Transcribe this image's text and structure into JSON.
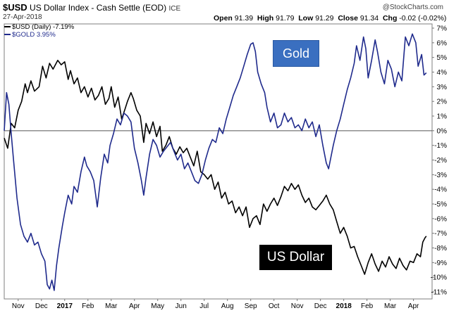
{
  "header": {
    "symbol": "$USD",
    "name": "US Dollar Index - Cash Settle (EOD)",
    "exchange": "ICE",
    "date": "27-Apr-2018",
    "watermark": "@StockCharts.com",
    "open_label": "Open",
    "open": "91.39",
    "high_label": "High",
    "high": "91.79",
    "low_label": "Low",
    "low": "91.29",
    "close_label": "Close",
    "close": "91.34",
    "chg_label": "Chg",
    "chg": "-0.02 (-0.02%)"
  },
  "legend": [
    {
      "label": "$USD (Daily) -7.19%",
      "color": "#000000"
    },
    {
      "label": "$GOLD 3.95%",
      "color": "#1f2a8c"
    }
  ],
  "annotations": {
    "gold": "Gold",
    "usd": "US Dollar",
    "gold_bg": "#3a6fc0",
    "usd_bg": "#000000"
  },
  "chart_data": {
    "type": "line",
    "ylim": [
      -11.5,
      7.5
    ],
    "y_ticks": [
      "7%",
      "6%",
      "5%",
      "4%",
      "3%",
      "2%",
      "1%",
      "0%",
      "-1%",
      "-2%",
      "-3%",
      "-4%",
      "-5%",
      "-6%",
      "-7%",
      "-8%",
      "-9%",
      "-10%",
      "-11%"
    ],
    "y_tick_values": [
      7,
      6,
      5,
      4,
      3,
      2,
      1,
      0,
      -1,
      -2,
      -3,
      -4,
      -5,
      -6,
      -7,
      -8,
      -9,
      -10,
      -11
    ],
    "x_ticks": [
      {
        "label": "Nov",
        "t": 0.6,
        "bold": false
      },
      {
        "label": "Dec",
        "t": 1.6,
        "bold": false
      },
      {
        "label": "2017",
        "t": 2.6,
        "bold": true
      },
      {
        "label": "Feb",
        "t": 3.6,
        "bold": false
      },
      {
        "label": "Mar",
        "t": 4.6,
        "bold": false
      },
      {
        "label": "Apr",
        "t": 5.6,
        "bold": false
      },
      {
        "label": "May",
        "t": 6.6,
        "bold": false
      },
      {
        "label": "Jun",
        "t": 7.6,
        "bold": false
      },
      {
        "label": "Jul",
        "t": 8.6,
        "bold": false
      },
      {
        "label": "Aug",
        "t": 9.6,
        "bold": false
      },
      {
        "label": "Sep",
        "t": 10.6,
        "bold": false
      },
      {
        "label": "Oct",
        "t": 11.6,
        "bold": false
      },
      {
        "label": "Nov",
        "t": 12.6,
        "bold": false
      },
      {
        "label": "Dec",
        "t": 13.6,
        "bold": false
      },
      {
        "label": "2018",
        "t": 14.6,
        "bold": true
      },
      {
        "label": "Feb",
        "t": 15.6,
        "bold": false
      },
      {
        "label": "Mar",
        "t": 16.6,
        "bold": false
      },
      {
        "label": "Apr",
        "t": 17.6,
        "bold": false
      }
    ],
    "x_range": [
      0,
      18.4
    ],
    "series": [
      {
        "name": "$USD (Daily) -7.19%",
        "color": "#000000",
        "points": [
          [
            0.0,
            -0.5
          ],
          [
            0.15,
            -1.2
          ],
          [
            0.3,
            0.5
          ],
          [
            0.45,
            0.2
          ],
          [
            0.6,
            1.4
          ],
          [
            0.75,
            2.0
          ],
          [
            0.9,
            3.2
          ],
          [
            1.0,
            2.6
          ],
          [
            1.15,
            3.4
          ],
          [
            1.3,
            2.7
          ],
          [
            1.5,
            3.0
          ],
          [
            1.65,
            4.4
          ],
          [
            1.8,
            3.6
          ],
          [
            1.95,
            4.6
          ],
          [
            2.1,
            4.2
          ],
          [
            2.3,
            4.8
          ],
          [
            2.45,
            4.5
          ],
          [
            2.6,
            4.7
          ],
          [
            2.75,
            3.5
          ],
          [
            2.85,
            4.1
          ],
          [
            3.0,
            3.2
          ],
          [
            3.15,
            3.6
          ],
          [
            3.3,
            2.6
          ],
          [
            3.45,
            3.0
          ],
          [
            3.6,
            2.3
          ],
          [
            3.75,
            2.9
          ],
          [
            3.9,
            2.1
          ],
          [
            4.05,
            2.4
          ],
          [
            4.2,
            3.0
          ],
          [
            4.35,
            1.8
          ],
          [
            4.5,
            2.2
          ],
          [
            4.6,
            3.0
          ],
          [
            4.75,
            1.6
          ],
          [
            4.9,
            2.3
          ],
          [
            5.05,
            0.8
          ],
          [
            5.2,
            1.5
          ],
          [
            5.3,
            2.0
          ],
          [
            5.45,
            2.6
          ],
          [
            5.55,
            2.2
          ],
          [
            5.7,
            1.4
          ],
          [
            5.85,
            1.0
          ],
          [
            6.0,
            -0.8
          ],
          [
            6.1,
            0.5
          ],
          [
            6.25,
            -0.2
          ],
          [
            6.4,
            0.6
          ],
          [
            6.55,
            -0.4
          ],
          [
            6.7,
            0.3
          ],
          [
            6.8,
            -1.4
          ],
          [
            6.95,
            -1.0
          ],
          [
            7.1,
            -0.4
          ],
          [
            7.25,
            -1.2
          ],
          [
            7.4,
            -1.6
          ],
          [
            7.55,
            -1.1
          ],
          [
            7.7,
            -1.5
          ],
          [
            7.85,
            -1.2
          ],
          [
            8.0,
            -1.8
          ],
          [
            8.15,
            -2.4
          ],
          [
            8.3,
            -1.4
          ],
          [
            8.45,
            -2.8
          ],
          [
            8.6,
            -3.0
          ],
          [
            8.75,
            -3.3
          ],
          [
            8.9,
            -3.0
          ],
          [
            9.05,
            -4.0
          ],
          [
            9.2,
            -3.5
          ],
          [
            9.35,
            -4.6
          ],
          [
            9.5,
            -4.2
          ],
          [
            9.65,
            -5.0
          ],
          [
            9.8,
            -4.8
          ],
          [
            9.95,
            -5.6
          ],
          [
            10.1,
            -5.2
          ],
          [
            10.25,
            -5.8
          ],
          [
            10.4,
            -5.2
          ],
          [
            10.55,
            -6.6
          ],
          [
            10.7,
            -6.0
          ],
          [
            10.85,
            -5.8
          ],
          [
            11.0,
            -6.4
          ],
          [
            11.15,
            -5.0
          ],
          [
            11.3,
            -5.5
          ],
          [
            11.45,
            -5.0
          ],
          [
            11.6,
            -4.6
          ],
          [
            11.75,
            -5.1
          ],
          [
            11.9,
            -4.5
          ],
          [
            12.05,
            -3.8
          ],
          [
            12.2,
            -4.1
          ],
          [
            12.35,
            -3.6
          ],
          [
            12.5,
            -4.0
          ],
          [
            12.65,
            -3.7
          ],
          [
            12.8,
            -4.4
          ],
          [
            12.95,
            -4.9
          ],
          [
            13.1,
            -4.6
          ],
          [
            13.25,
            -5.2
          ],
          [
            13.4,
            -5.4
          ],
          [
            13.55,
            -5.1
          ],
          [
            13.7,
            -4.8
          ],
          [
            13.85,
            -4.4
          ],
          [
            14.0,
            -5.0
          ],
          [
            14.15,
            -5.4
          ],
          [
            14.3,
            -6.2
          ],
          [
            14.45,
            -7.0
          ],
          [
            14.6,
            -6.6
          ],
          [
            14.75,
            -7.2
          ],
          [
            14.9,
            -8.0
          ],
          [
            15.05,
            -7.9
          ],
          [
            15.2,
            -8.6
          ],
          [
            15.35,
            -9.2
          ],
          [
            15.5,
            -9.8
          ],
          [
            15.65,
            -9.0
          ],
          [
            15.8,
            -8.4
          ],
          [
            15.95,
            -9.1
          ],
          [
            16.1,
            -9.6
          ],
          [
            16.25,
            -8.9
          ],
          [
            16.4,
            -9.3
          ],
          [
            16.55,
            -8.6
          ],
          [
            16.7,
            -9.1
          ],
          [
            16.85,
            -9.4
          ],
          [
            17.0,
            -8.7
          ],
          [
            17.15,
            -9.2
          ],
          [
            17.3,
            -9.5
          ],
          [
            17.45,
            -8.9
          ],
          [
            17.6,
            -9.0
          ],
          [
            17.75,
            -8.4
          ],
          [
            17.9,
            -8.6
          ],
          [
            18.0,
            -7.6
          ],
          [
            18.1,
            -7.3
          ],
          [
            18.15,
            -7.2
          ]
        ]
      },
      {
        "name": "$GOLD 3.95%",
        "color": "#1f2a8c",
        "points": [
          [
            0.0,
            0.0
          ],
          [
            0.1,
            2.6
          ],
          [
            0.2,
            1.8
          ],
          [
            0.3,
            -0.2
          ],
          [
            0.4,
            -2.0
          ],
          [
            0.55,
            -4.6
          ],
          [
            0.7,
            -6.4
          ],
          [
            0.85,
            -7.2
          ],
          [
            1.0,
            -7.6
          ],
          [
            1.15,
            -7.0
          ],
          [
            1.3,
            -7.8
          ],
          [
            1.45,
            -7.6
          ],
          [
            1.6,
            -8.4
          ],
          [
            1.75,
            -8.9
          ],
          [
            1.85,
            -10.5
          ],
          [
            1.95,
            -10.8
          ],
          [
            2.05,
            -10.2
          ],
          [
            2.15,
            -10.9
          ],
          [
            2.25,
            -9.2
          ],
          [
            2.35,
            -8.0
          ],
          [
            2.5,
            -6.5
          ],
          [
            2.6,
            -5.6
          ],
          [
            2.75,
            -4.4
          ],
          [
            2.9,
            -5.0
          ],
          [
            3.0,
            -3.8
          ],
          [
            3.15,
            -4.2
          ],
          [
            3.3,
            -2.8
          ],
          [
            3.45,
            -1.8
          ],
          [
            3.55,
            -2.4
          ],
          [
            3.7,
            -2.8
          ],
          [
            3.85,
            -3.4
          ],
          [
            4.0,
            -5.2
          ],
          [
            4.15,
            -3.2
          ],
          [
            4.3,
            -1.6
          ],
          [
            4.45,
            -2.2
          ],
          [
            4.55,
            -1.0
          ],
          [
            4.7,
            -0.2
          ],
          [
            4.85,
            0.8
          ],
          [
            5.0,
            0.4
          ],
          [
            5.15,
            1.2
          ],
          [
            5.3,
            1.0
          ],
          [
            5.45,
            0.6
          ],
          [
            5.6,
            -1.2
          ],
          [
            5.75,
            -2.2
          ],
          [
            5.9,
            -3.4
          ],
          [
            6.0,
            -4.4
          ],
          [
            6.1,
            -3.2
          ],
          [
            6.25,
            -1.6
          ],
          [
            6.4,
            -0.6
          ],
          [
            6.55,
            -1.0
          ],
          [
            6.7,
            -1.8
          ],
          [
            6.85,
            -1.4
          ],
          [
            7.0,
            -1.1
          ],
          [
            7.15,
            -0.8
          ],
          [
            7.3,
            -1.4
          ],
          [
            7.45,
            -2.0
          ],
          [
            7.6,
            -1.6
          ],
          [
            7.75,
            -2.6
          ],
          [
            7.9,
            -2.2
          ],
          [
            8.05,
            -2.8
          ],
          [
            8.2,
            -3.4
          ],
          [
            8.35,
            -3.6
          ],
          [
            8.5,
            -3.0
          ],
          [
            8.65,
            -2.0
          ],
          [
            8.8,
            -1.2
          ],
          [
            8.95,
            -0.6
          ],
          [
            9.1,
            -0.8
          ],
          [
            9.25,
            0.2
          ],
          [
            9.4,
            -0.2
          ],
          [
            9.55,
            0.8
          ],
          [
            9.7,
            1.6
          ],
          [
            9.85,
            2.4
          ],
          [
            10.0,
            3.0
          ],
          [
            10.15,
            3.6
          ],
          [
            10.3,
            4.4
          ],
          [
            10.45,
            5.2
          ],
          [
            10.6,
            5.9
          ],
          [
            10.7,
            6.0
          ],
          [
            10.8,
            5.4
          ],
          [
            10.9,
            4.0
          ],
          [
            11.05,
            3.2
          ],
          [
            11.2,
            2.6
          ],
          [
            11.3,
            1.6
          ],
          [
            11.45,
            0.6
          ],
          [
            11.6,
            1.2
          ],
          [
            11.75,
            0.2
          ],
          [
            11.9,
            0.4
          ],
          [
            12.05,
            1.2
          ],
          [
            12.2,
            0.6
          ],
          [
            12.35,
            0.9
          ],
          [
            12.5,
            0.2
          ],
          [
            12.65,
            0.4
          ],
          [
            12.8,
            0.0
          ],
          [
            12.95,
            0.8
          ],
          [
            13.1,
            0.2
          ],
          [
            13.25,
            0.6
          ],
          [
            13.4,
            -0.4
          ],
          [
            13.55,
            0.4
          ],
          [
            13.7,
            -1.0
          ],
          [
            13.85,
            -2.2
          ],
          [
            13.95,
            -2.6
          ],
          [
            14.05,
            -1.8
          ],
          [
            14.15,
            -1.0
          ],
          [
            14.3,
            0.0
          ],
          [
            14.45,
            0.8
          ],
          [
            14.6,
            1.8
          ],
          [
            14.75,
            2.8
          ],
          [
            14.9,
            3.6
          ],
          [
            15.05,
            4.6
          ],
          [
            15.15,
            5.8
          ],
          [
            15.3,
            4.8
          ],
          [
            15.45,
            6.4
          ],
          [
            15.55,
            5.6
          ],
          [
            15.65,
            3.6
          ],
          [
            15.8,
            4.8
          ],
          [
            15.95,
            6.2
          ],
          [
            16.05,
            5.4
          ],
          [
            16.2,
            4.0
          ],
          [
            16.35,
            3.2
          ],
          [
            16.5,
            4.8
          ],
          [
            16.65,
            4.2
          ],
          [
            16.8,
            3.0
          ],
          [
            16.95,
            4.0
          ],
          [
            17.1,
            3.4
          ],
          [
            17.25,
            6.4
          ],
          [
            17.4,
            5.8
          ],
          [
            17.55,
            6.6
          ],
          [
            17.7,
            6.0
          ],
          [
            17.8,
            4.4
          ],
          [
            17.95,
            5.2
          ],
          [
            18.05,
            3.8
          ],
          [
            18.15,
            3.95
          ]
        ]
      }
    ]
  }
}
